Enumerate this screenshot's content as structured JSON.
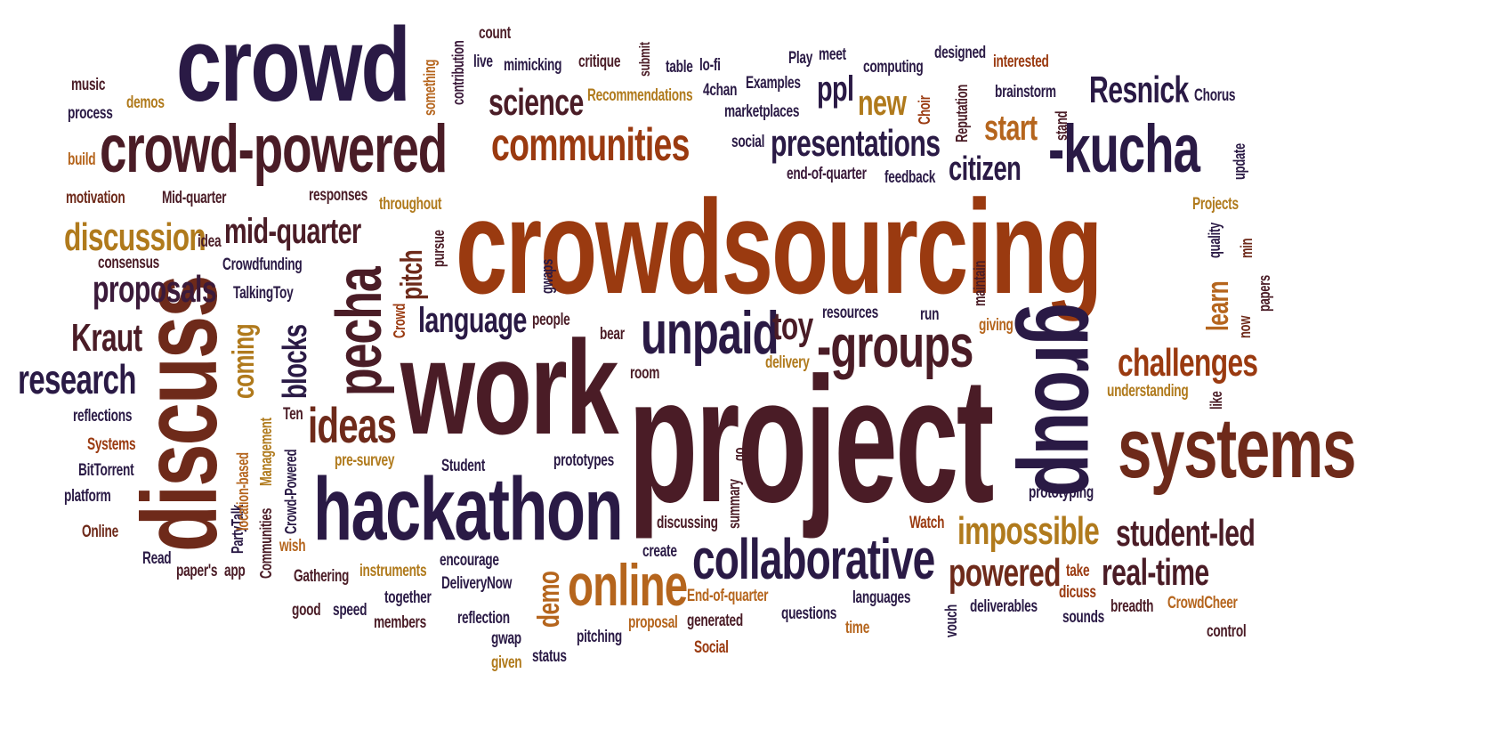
{
  "palette": {
    "navy": "#2a1a45",
    "maroon": "#4a1c26",
    "brown": "#6e2a1a",
    "rust": "#9a3a10",
    "orange": "#b5651d",
    "gold": "#b07a1c",
    "plum": "#3b1a3a"
  },
  "words": {
    "crowd": "crowd",
    "crowd_powered": "crowd-powered",
    "communities": "communities",
    "crowdsourcing": "crowdsourcing",
    "kucha": "-kucha",
    "resnick": "Resnick",
    "group": "group",
    "project": "project",
    "work": "work",
    "systems": "systems",
    "discuss": "discuss",
    "pecha": "pecha",
    "hackathon": "hackathon",
    "collaborative": "collaborative",
    "online": "online",
    "groups": "-groups",
    "unpaid": "unpaid",
    "ideas": "ideas",
    "science": "science",
    "presentations": "presentations",
    "citizen": "citizen",
    "start": "start",
    "new": "new",
    "discussion": "discussion",
    "mid_quarter": "mid-quarter",
    "proposals": "proposals",
    "kraut": "Kraut",
    "research": "research",
    "language": "language",
    "challenges": "challenges",
    "impossible": "impossible",
    "student_led": "student-led",
    "powered": "powered",
    "real_time": "real-time",
    "toy": "toy",
    "blocks": "blocks",
    "coming": "coming",
    "pitch": "pitch",
    "learn": "learn",
    "demo": "demo",
    "ppl": "ppl",
    "music": "music",
    "process": "process",
    "demos": "demos",
    "build": "build",
    "motivation": "motivation",
    "mid_quarter_cap": "Mid-quarter",
    "responses": "responses",
    "throughout": "throughout",
    "idea": "idea",
    "consensus": "consensus",
    "crowdfunding": "Crowdfunding",
    "talkingtoy": "TalkingToy",
    "count": "count",
    "live": "live",
    "mimicking": "mimicking",
    "critique": "critique",
    "submit": "submit",
    "table": "table",
    "lofi": "lo-fi",
    "play": "Play",
    "meet": "meet",
    "computing": "computing",
    "designed": "designed",
    "interested": "interested",
    "something": "something",
    "contribution": "contribution",
    "recommendations": "Recommendations",
    "fourchan": "4chan",
    "examples": "Examples",
    "marketplaces": "marketplaces",
    "brainstorm": "brainstorm",
    "chorus": "Chorus",
    "choir": "Choir",
    "reputation": "Reputation",
    "stand": "stand",
    "social": "social",
    "end_of_quarter": "end-of-quarter",
    "feedback": "feedback",
    "update": "update",
    "projects": "Projects",
    "quality": "quality",
    "min": "min",
    "papers": "papers",
    "now": "now",
    "like": "like",
    "maintain": "maintain",
    "giving": "giving",
    "run": "run",
    "resources": "resources",
    "understanding": "understanding",
    "gwaps": "gwaps",
    "pursue": "pursue",
    "crowd_small": "Crowd",
    "people": "people",
    "bear": "bear",
    "delivery": "delivery",
    "room": "room",
    "reflections": "reflections",
    "systems_cap": "Systems",
    "bittorrent": "BitTorrent",
    "platform": "platform",
    "online_cap": "Online",
    "read": "Read",
    "papers_apos": "paper's",
    "app": "app",
    "partytalk": "PartyTalk",
    "location_based": "location-based",
    "management": "Management",
    "communities_cap": "Communities",
    "crowd_powered_cap": "Crowd-Powered",
    "ten": "Ten",
    "pre_survey": "pre-survey",
    "wish": "wish",
    "student": "Student",
    "prototypes": "prototypes",
    "go": "go",
    "summary": "summary",
    "prototyping": "prototyping",
    "discussing": "discussing",
    "create": "create",
    "watch": "Watch",
    "gathering": "Gathering",
    "instruments": "instruments",
    "encourage": "encourage",
    "deliverynow": "DeliveryNow",
    "together": "together",
    "good": "good",
    "speed": "speed",
    "members": "members",
    "reflection": "reflection",
    "gwap": "gwap",
    "given": "given",
    "status": "status",
    "pitching": "pitching",
    "proposal": "proposal",
    "end_of_quarter_cap": "End-of-quarter",
    "generated": "generated",
    "social_cap": "Social",
    "questions": "questions",
    "time": "time",
    "languages": "languages",
    "vouch": "vouch",
    "deliverables": "deliverables",
    "take": "take",
    "dicuss": "dicuss",
    "sounds": "sounds",
    "breadth": "breadth",
    "crowdcheer": "CrowdCheer",
    "control": "control"
  }
}
